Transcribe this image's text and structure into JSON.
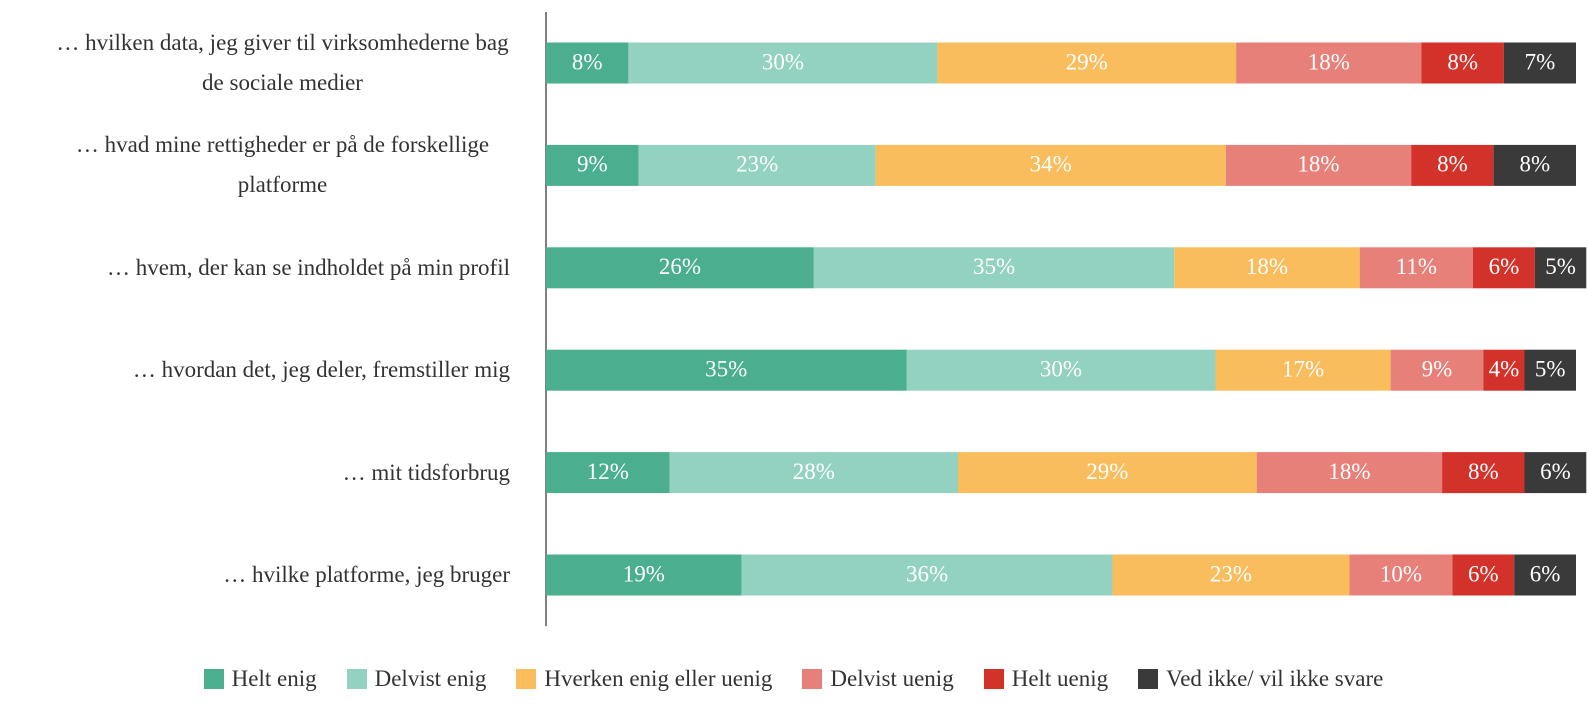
{
  "chart_data": {
    "type": "stacked-bar-horizontal",
    "categories": [
      "… hvilken data, jeg giver til virksomhederne bag de sociale medier",
      "… hvad mine rettigheder er på de forskellige platforme",
      "… hvem, der kan se indholdet på min profil",
      "… hvordan det, jeg deler, fremstiller mig",
      "… mit tidsforbrug",
      "… hvilke platforme, jeg bruger"
    ],
    "series": [
      {
        "name": "Helt enig",
        "color": "#4aae8f",
        "values": [
          8,
          9,
          26,
          35,
          12,
          19
        ],
        "value_labels": [
          "8%",
          "9%",
          "26%",
          "35%",
          "12%",
          "19%"
        ]
      },
      {
        "name": "Delvist enig",
        "color": "#93d2c0",
        "values": [
          30,
          23,
          35,
          30,
          28,
          36
        ],
        "value_labels": [
          "30%",
          "23%",
          "35%",
          "30%",
          "28%",
          "36%"
        ]
      },
      {
        "name": "Hverken enig eller uenig",
        "color": "#f9bd5e",
        "values": [
          29,
          34,
          18,
          17,
          29,
          23
        ],
        "value_labels": [
          "29%",
          "34%",
          "18%",
          "17%",
          "29%",
          "23%"
        ]
      },
      {
        "name": "Delvist uenig",
        "color": "#e8807a",
        "values": [
          18,
          18,
          11,
          9,
          18,
          10
        ],
        "value_labels": [
          "18%",
          "18%",
          "11%",
          "9%",
          "18%",
          "10%"
        ]
      },
      {
        "name": "Helt uenig",
        "color": "#d3322b",
        "values": [
          8,
          8,
          6,
          4,
          8,
          6
        ],
        "value_labels": [
          "8%",
          "8%",
          "6%",
          "4%",
          "8%",
          "6%"
        ]
      },
      {
        "name": "Ved ikke/ vil ikke svare",
        "color": "#3a3a3a",
        "values": [
          7,
          8,
          5,
          5,
          6,
          6
        ],
        "value_labels": [
          "7%",
          "8%",
          "5%",
          "5%",
          "6%",
          "6%"
        ]
      }
    ]
  }
}
